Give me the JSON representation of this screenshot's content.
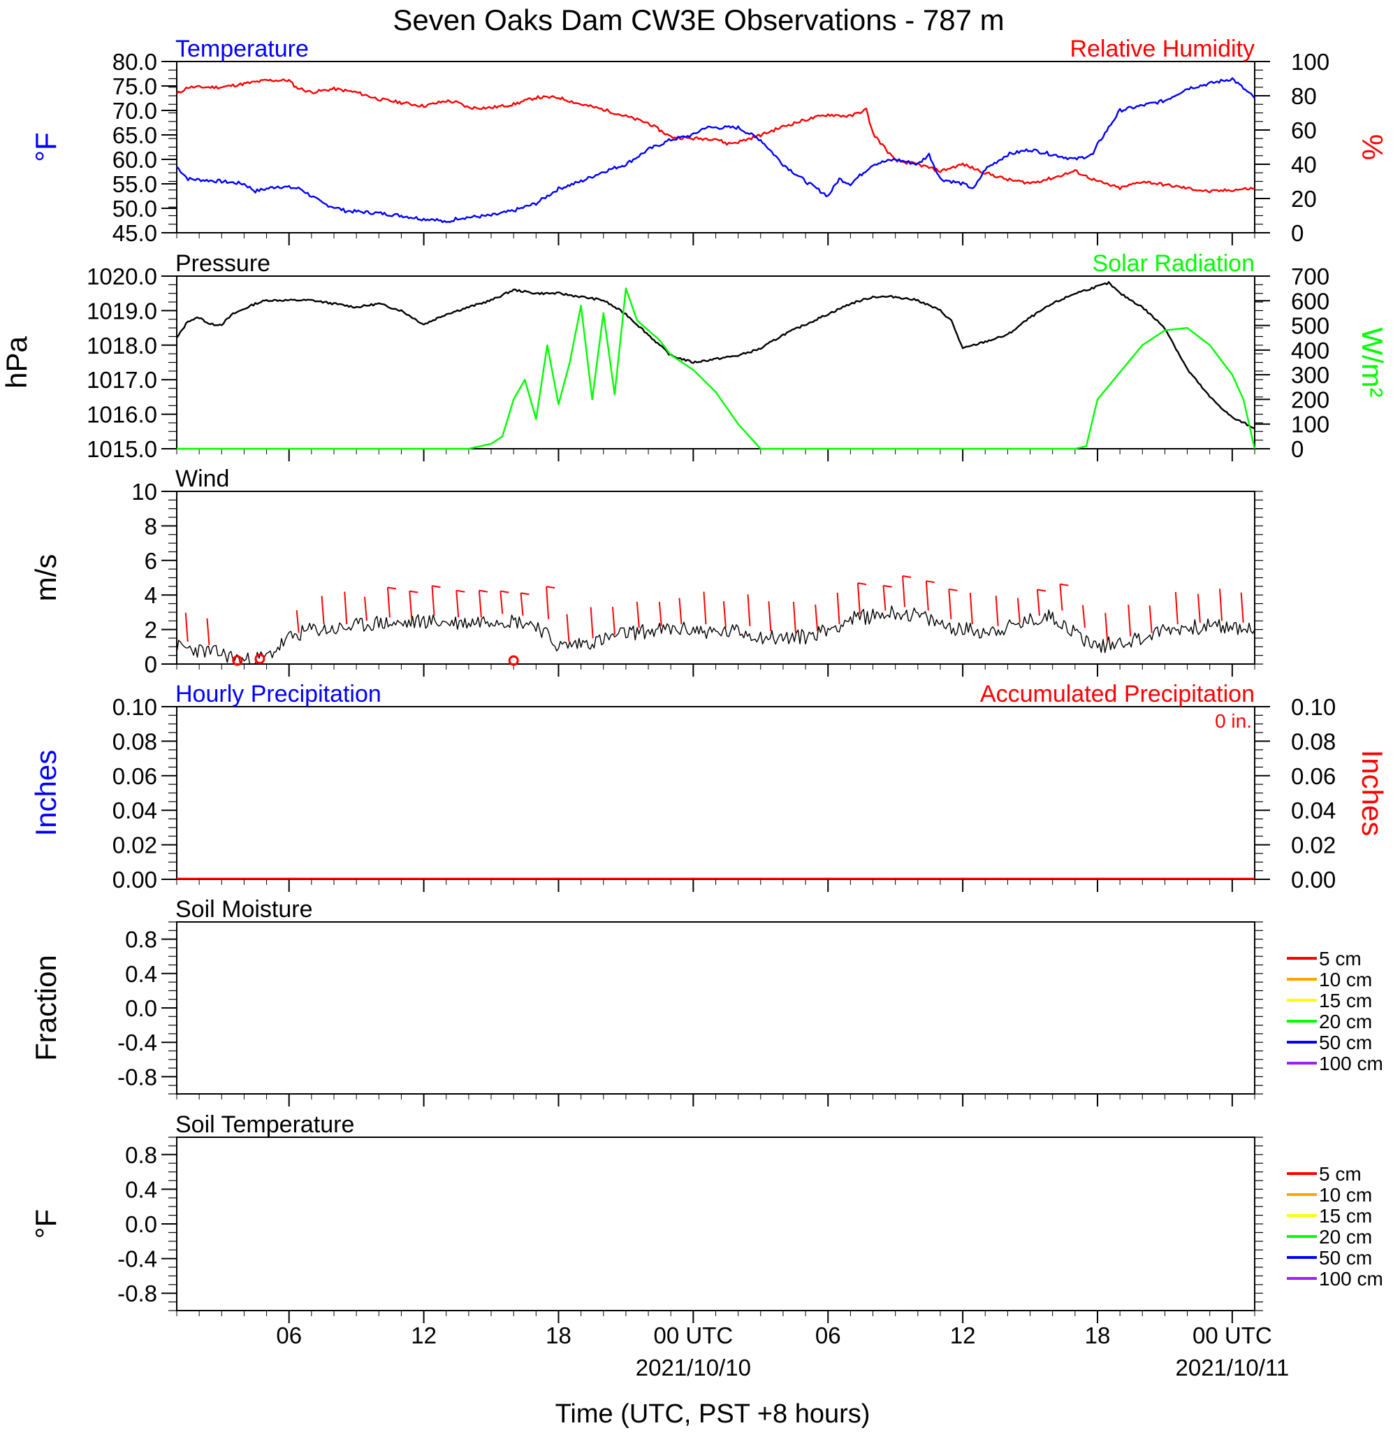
{
  "title": "Seven Oaks Dam CW3E Observations - 787 m",
  "xlabel": "Time (UTC, PST +8 hours)",
  "x_range_hours": [
    -5,
    43
  ],
  "x_ticks": [
    {
      "h": 0,
      "label": "06"
    },
    {
      "h": 6,
      "label": "12"
    },
    {
      "h": 12,
      "label": "18"
    },
    {
      "h": 18,
      "label": "00 UTC",
      "date": "2021/10/10"
    },
    {
      "h": 24,
      "label": "06"
    },
    {
      "h": 30,
      "label": "12"
    },
    {
      "h": 36,
      "label": "18"
    },
    {
      "h": 42,
      "label": "00 UTC",
      "date": "2021/10/11"
    }
  ],
  "colors": {
    "temperature": "#0000ff",
    "humidity": "#ff0000",
    "pressure": "#000000",
    "solar": "#00ff00",
    "wind": "#000000",
    "barb": "#ff0000",
    "precip": "#ff0000"
  },
  "panels": {
    "temp_rh": {
      "left_title": "Temperature",
      "right_title": "Relative Humidity",
      "left_unit": "°F",
      "right_unit": "%",
      "ylim": [
        45,
        80
      ],
      "yticks": [
        "45.0",
        "50.0",
        "55.0",
        "60.0",
        "65.0",
        "70.0",
        "75.0",
        "80.0"
      ],
      "y2lim": [
        0,
        100
      ],
      "y2ticks": [
        "0",
        "20",
        "40",
        "60",
        "80",
        "100"
      ]
    },
    "pressure": {
      "left_title": "Pressure",
      "right_title": "Solar Radiation",
      "left_unit": "hPa",
      "right_unit": "W/m²",
      "ylim": [
        1015,
        1020
      ],
      "yticks": [
        "1015.0",
        "1016.0",
        "1017.0",
        "1018.0",
        "1019.0",
        "1020.0"
      ],
      "y2lim": [
        0,
        700
      ],
      "y2ticks": [
        "0",
        "100",
        "200",
        "300",
        "400",
        "500",
        "600",
        "700"
      ]
    },
    "wind": {
      "left_title": "Wind",
      "left_unit": "m/s",
      "ylim": [
        0,
        10
      ],
      "yticks": [
        "0",
        "2",
        "4",
        "6",
        "8",
        "10"
      ]
    },
    "precip": {
      "left_title": "Hourly Precipitation",
      "right_title": "Accumulated Precipitation",
      "left_unit": "Inches",
      "right_unit": "Inches",
      "total": "0 in.",
      "ylim": [
        0,
        0.1
      ],
      "yticks": [
        "0.00",
        "0.02",
        "0.04",
        "0.06",
        "0.08",
        "0.10"
      ],
      "y2ticks": [
        "0.00",
        "0.02",
        "0.04",
        "0.06",
        "0.08",
        "0.10"
      ]
    },
    "soil_moisture": {
      "left_title": "Soil Moisture",
      "left_unit": "Fraction",
      "ylim": [
        -1,
        1
      ],
      "yticks": [
        "-0.8",
        "-0.4",
        "0.0",
        "0.4",
        "0.8"
      ]
    },
    "soil_temp": {
      "left_title": "Soil Temperature",
      "left_unit": "°F",
      "ylim": [
        -1,
        1
      ],
      "yticks": [
        "-0.8",
        "-0.4",
        "0.0",
        "0.4",
        "0.8"
      ]
    }
  },
  "soil_legend": [
    {
      "label": "5 cm",
      "color": "#ff0000"
    },
    {
      "label": "10 cm",
      "color": "#ffa500"
    },
    {
      "label": "15 cm",
      "color": "#ffff00"
    },
    {
      "label": "20 cm",
      "color": "#00ff00"
    },
    {
      "label": "50 cm",
      "color": "#0000ff"
    },
    {
      "label": "100 cm",
      "color": "#a020f0"
    }
  ],
  "chart_data": {
    "type": "line",
    "x_unit": "hours relative to 06 UTC 2021/10/09",
    "series": [
      {
        "name": "Temperature",
        "axis": "left",
        "panel": "temp_rh",
        "points": [
          [
            -5,
            58.5
          ],
          [
            -4.5,
            56
          ],
          [
            -3,
            55.5
          ],
          [
            -2,
            55
          ],
          [
            -1.5,
            53.5
          ],
          [
            -0.5,
            54.5
          ],
          [
            0.5,
            54
          ],
          [
            1.5,
            51
          ],
          [
            2.5,
            49.5
          ],
          [
            4,
            49
          ],
          [
            5,
            48.5
          ],
          [
            6,
            47.8
          ],
          [
            6.5,
            47.8
          ],
          [
            7,
            47
          ],
          [
            7.5,
            48
          ],
          [
            9,
            48.5
          ],
          [
            10,
            49.5
          ],
          [
            11,
            51
          ],
          [
            12,
            54
          ],
          [
            13,
            55.5
          ],
          [
            14,
            57.5
          ],
          [
            15,
            59
          ],
          [
            16,
            62
          ],
          [
            17,
            64
          ],
          [
            18,
            65
          ],
          [
            18.5,
            66.5
          ],
          [
            20,
            66.5
          ],
          [
            21,
            64
          ],
          [
            22,
            59
          ],
          [
            23,
            55.5
          ],
          [
            24,
            52.5
          ],
          [
            24.5,
            56
          ],
          [
            25,
            55
          ],
          [
            26,
            59
          ],
          [
            27,
            60
          ],
          [
            28,
            59
          ],
          [
            28.5,
            61
          ],
          [
            29,
            56
          ],
          [
            30,
            55
          ],
          [
            30.5,
            54
          ],
          [
            31,
            58
          ],
          [
            32,
            61
          ],
          [
            33,
            62
          ],
          [
            34,
            61
          ],
          [
            35,
            60
          ],
          [
            35.8,
            61
          ],
          [
            36,
            63
          ],
          [
            37,
            70
          ],
          [
            38,
            71
          ],
          [
            39,
            72
          ],
          [
            40,
            74.5
          ],
          [
            41,
            75.5
          ],
          [
            42,
            76.5
          ],
          [
            43,
            72.5
          ]
        ]
      },
      {
        "name": "Relative Humidity",
        "axis": "right",
        "panel": "temp_rh",
        "points": [
          [
            -5,
            81
          ],
          [
            -4.5,
            85
          ],
          [
            -3,
            85
          ],
          [
            -2.5,
            86
          ],
          [
            -1,
            89
          ],
          [
            0,
            89
          ],
          [
            0.3,
            85
          ],
          [
            1,
            82
          ],
          [
            2,
            84
          ],
          [
            3,
            82
          ],
          [
            4,
            78
          ],
          [
            5,
            76
          ],
          [
            6,
            74
          ],
          [
            7,
            77
          ],
          [
            7.5,
            76
          ],
          [
            8,
            73
          ],
          [
            9,
            73
          ],
          [
            10,
            75
          ],
          [
            11,
            79
          ],
          [
            12,
            79
          ],
          [
            13,
            75
          ],
          [
            14,
            72
          ],
          [
            15,
            68
          ],
          [
            16,
            64
          ],
          [
            17,
            56
          ],
          [
            18,
            55
          ],
          [
            19,
            55
          ],
          [
            19.5,
            52
          ],
          [
            20,
            53
          ],
          [
            21,
            57
          ],
          [
            22,
            62
          ],
          [
            23,
            66
          ],
          [
            24,
            69
          ],
          [
            25,
            68
          ],
          [
            25.7,
            72
          ],
          [
            26,
            58
          ],
          [
            27,
            42
          ],
          [
            28,
            40
          ],
          [
            28.5,
            38
          ],
          [
            29,
            36
          ],
          [
            30,
            40
          ],
          [
            31,
            35
          ],
          [
            32,
            31
          ],
          [
            33,
            29
          ],
          [
            34,
            32
          ],
          [
            35,
            36
          ],
          [
            36,
            30
          ],
          [
            37,
            26
          ],
          [
            38,
            30
          ],
          [
            39,
            28
          ],
          [
            40,
            26
          ],
          [
            41,
            24
          ],
          [
            43,
            26
          ]
        ]
      },
      {
        "name": "Pressure",
        "axis": "left",
        "panel": "pressure",
        "points": [
          [
            -5,
            1018.2
          ],
          [
            -4.5,
            1018.7
          ],
          [
            -4,
            1018.8
          ],
          [
            -3.5,
            1018.6
          ],
          [
            -3,
            1018.6
          ],
          [
            -2.5,
            1018.9
          ],
          [
            -1.5,
            1019.2
          ],
          [
            -1,
            1019.3
          ],
          [
            0,
            1019.3
          ],
          [
            1,
            1019.3
          ],
          [
            2,
            1019.2
          ],
          [
            3,
            1019.1
          ],
          [
            4,
            1019.2
          ],
          [
            5,
            1019.0
          ],
          [
            6,
            1018.6
          ],
          [
            7,
            1018.9
          ],
          [
            8,
            1019.1
          ],
          [
            9,
            1019.3
          ],
          [
            10,
            1019.6
          ],
          [
            11,
            1019.5
          ],
          [
            12,
            1019.5
          ],
          [
            13,
            1019.4
          ],
          [
            14,
            1019.3
          ],
          [
            15,
            1018.9
          ],
          [
            16,
            1018.3
          ],
          [
            17,
            1017.7
          ],
          [
            18,
            1017.5
          ],
          [
            19,
            1017.6
          ],
          [
            20,
            1017.7
          ],
          [
            21,
            1017.9
          ],
          [
            22,
            1018.3
          ],
          [
            23,
            1018.6
          ],
          [
            24,
            1018.9
          ],
          [
            25,
            1019.2
          ],
          [
            26,
            1019.4
          ],
          [
            27,
            1019.4
          ],
          [
            28,
            1019.3
          ],
          [
            29,
            1019.0
          ],
          [
            29.5,
            1018.7
          ],
          [
            30,
            1017.9
          ],
          [
            31,
            1018.1
          ],
          [
            32,
            1018.3
          ],
          [
            33,
            1018.8
          ],
          [
            34,
            1019.2
          ],
          [
            35,
            1019.5
          ],
          [
            36,
            1019.7
          ],
          [
            36.5,
            1019.8
          ],
          [
            37,
            1019.5
          ],
          [
            38,
            1019.1
          ],
          [
            39,
            1018.5
          ],
          [
            40,
            1017.3
          ],
          [
            41,
            1016.5
          ],
          [
            42,
            1015.9
          ],
          [
            43,
            1015.6
          ]
        ]
      },
      {
        "name": "Solar Radiation",
        "axis": "right",
        "panel": "pressure",
        "points": [
          [
            -5,
            0
          ],
          [
            8,
            0
          ],
          [
            9,
            20
          ],
          [
            9.5,
            50
          ],
          [
            10,
            200
          ],
          [
            10.5,
            280
          ],
          [
            11,
            120
          ],
          [
            11.5,
            420
          ],
          [
            12,
            180
          ],
          [
            12.5,
            350
          ],
          [
            13,
            580
          ],
          [
            13.5,
            200
          ],
          [
            14,
            550
          ],
          [
            14.5,
            220
          ],
          [
            15,
            650
          ],
          [
            15.5,
            520
          ],
          [
            16,
            480
          ],
          [
            16.5,
            440
          ],
          [
            17,
            380
          ],
          [
            18,
            320
          ],
          [
            19,
            230
          ],
          [
            20,
            100
          ],
          [
            21,
            0
          ],
          [
            35,
            0
          ],
          [
            35.5,
            10
          ],
          [
            36,
            200
          ],
          [
            37,
            310
          ],
          [
            38,
            420
          ],
          [
            39,
            480
          ],
          [
            40,
            490
          ],
          [
            41,
            420
          ],
          [
            42,
            300
          ],
          [
            42.5,
            200
          ],
          [
            43,
            0
          ]
        ]
      },
      {
        "name": "Wind",
        "axis": "left",
        "panel": "wind",
        "points": [
          [
            -5,
            1
          ],
          [
            -4,
            0.8
          ],
          [
            -3,
            0.6
          ],
          [
            -2,
            0.2
          ],
          [
            -1,
            0.4
          ],
          [
            0,
            1.5
          ],
          [
            1,
            2
          ],
          [
            2,
            2
          ],
          [
            3,
            2.2
          ],
          [
            4,
            2.4
          ],
          [
            5,
            2.3
          ],
          [
            6,
            2.5
          ],
          [
            7,
            2.4
          ],
          [
            8,
            2.4
          ],
          [
            9,
            2.6
          ],
          [
            10,
            2.5
          ],
          [
            11,
            2.3
          ],
          [
            12,
            1
          ],
          [
            13,
            1.2
          ],
          [
            14,
            1.4
          ],
          [
            15,
            1.8
          ],
          [
            16,
            1.9
          ],
          [
            17,
            2
          ],
          [
            18,
            2
          ],
          [
            19,
            1.8
          ],
          [
            20,
            1.9
          ],
          [
            21,
            1.6
          ],
          [
            22,
            1.5
          ],
          [
            23,
            1.6
          ],
          [
            24,
            2
          ],
          [
            25,
            2.6
          ],
          [
            26,
            2.8
          ],
          [
            27,
            3
          ],
          [
            28,
            2.8
          ],
          [
            29,
            2.3
          ],
          [
            30,
            2
          ],
          [
            31,
            1.9
          ],
          [
            32,
            2.1
          ],
          [
            33,
            2.5
          ],
          [
            34,
            2.8
          ],
          [
            35,
            1.8
          ],
          [
            36,
            1
          ],
          [
            37,
            1.3
          ],
          [
            38,
            1.5
          ],
          [
            39,
            2
          ],
          [
            40,
            2.1
          ],
          [
            41,
            2.2
          ],
          [
            42,
            2.1
          ],
          [
            43,
            2
          ]
        ]
      }
    ],
    "precip": {
      "hourly": [],
      "accumulated_total": 0
    }
  }
}
